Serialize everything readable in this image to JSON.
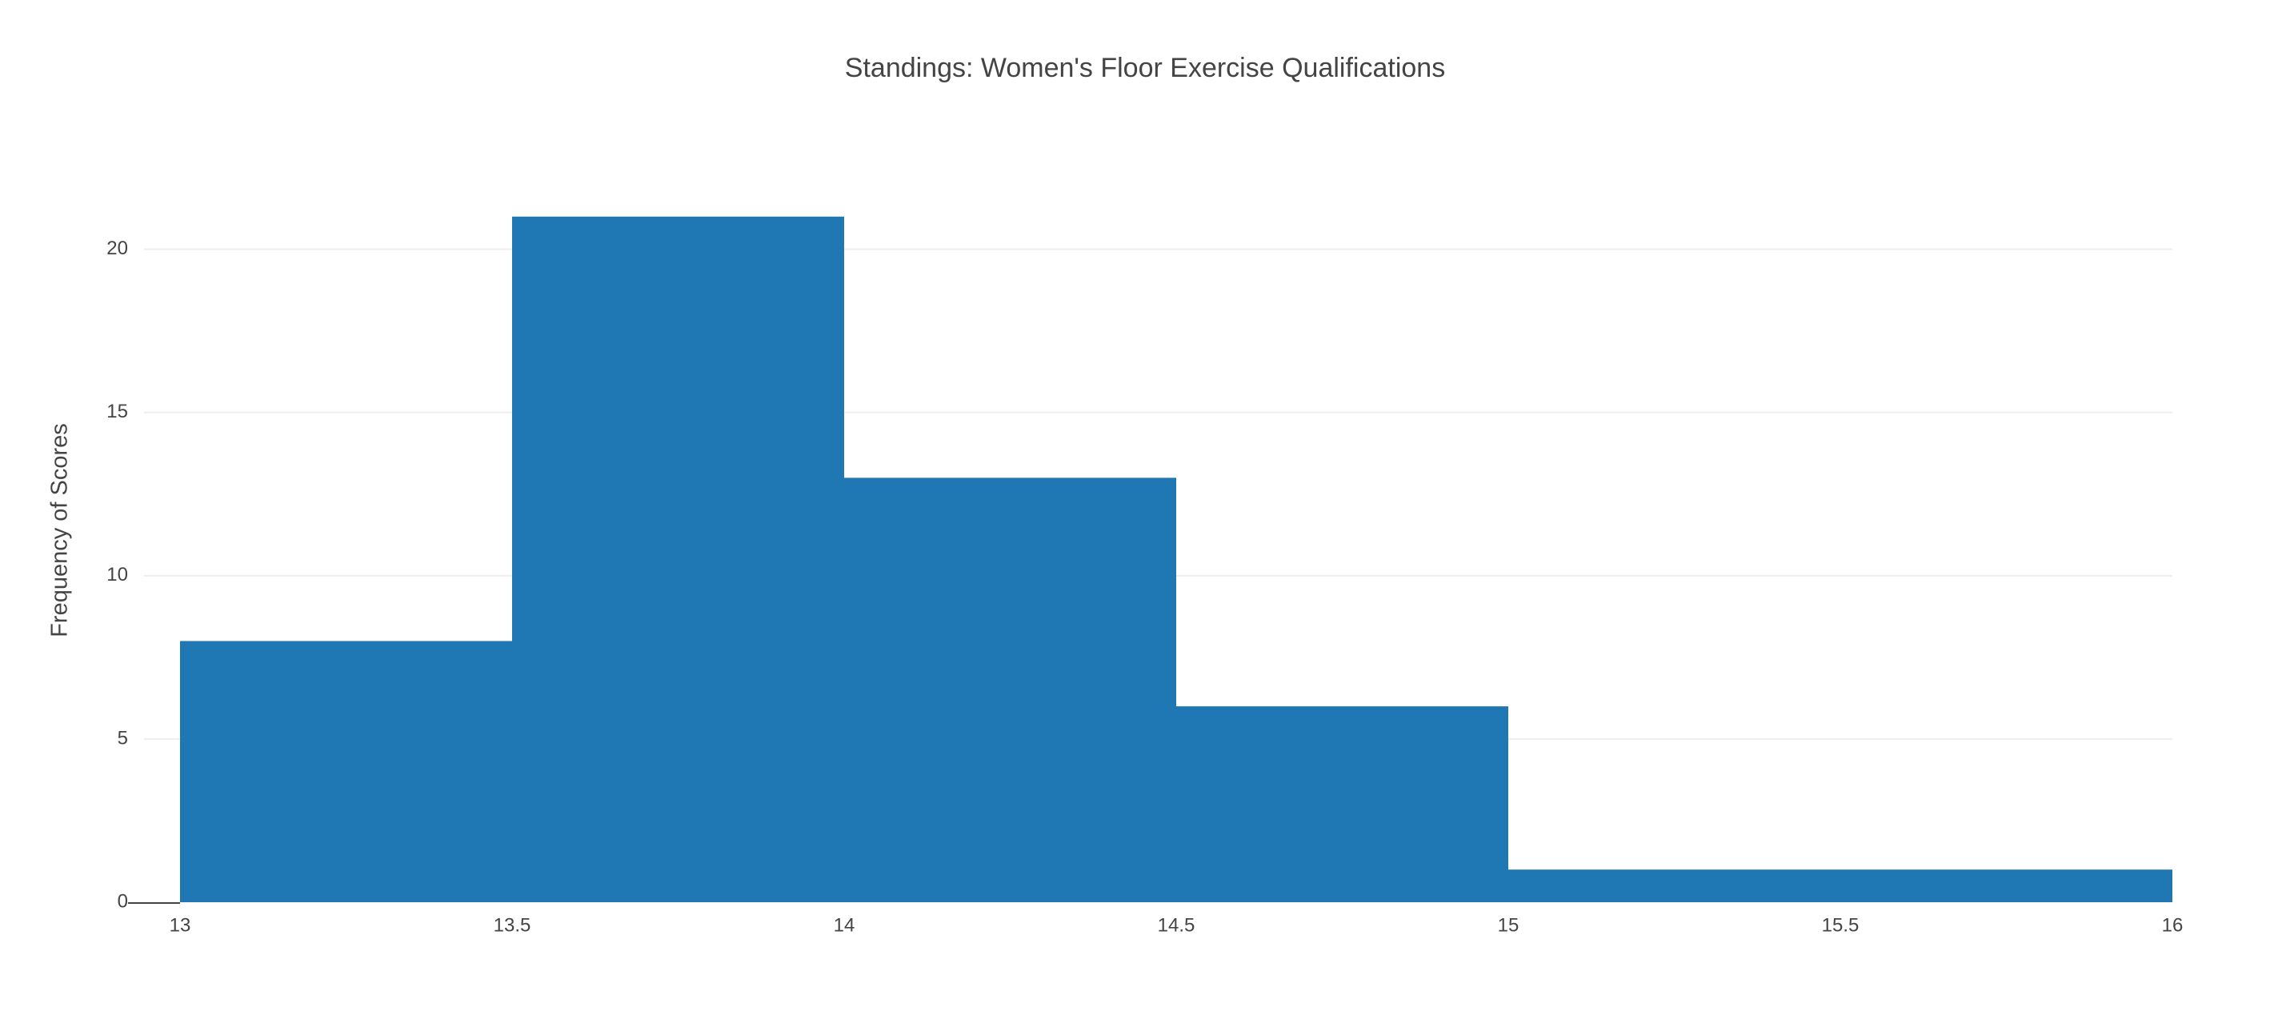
{
  "chart_data": {
    "type": "bar",
    "subtype": "histogram",
    "title": "Standings: Women's Floor Exercise Qualifications",
    "xlabel": "",
    "ylabel": "Frequency of Scores",
    "bins": [
      {
        "start": 13.0,
        "end": 13.5,
        "count": 8
      },
      {
        "start": 13.5,
        "end": 14.0,
        "count": 21
      },
      {
        "start": 14.0,
        "end": 14.5,
        "count": 13
      },
      {
        "start": 14.5,
        "end": 15.0,
        "count": 6
      },
      {
        "start": 15.0,
        "end": 16.0,
        "count": 1
      }
    ],
    "xlim": [
      13,
      16
    ],
    "ylim": [
      0,
      22
    ],
    "xticks": [
      13,
      13.5,
      14,
      14.5,
      15,
      15.5,
      16
    ],
    "xtick_labels": [
      "13",
      "13.5",
      "14",
      "14.5",
      "15",
      "15.5",
      "16"
    ],
    "yticks": [
      0,
      5,
      10,
      15,
      20
    ],
    "ytick_labels": [
      "0",
      "5",
      "10",
      "15",
      "20"
    ],
    "grid": true,
    "legend": "none",
    "colors": {
      "bar": "#1f77b4",
      "grid": "#eeeeee",
      "text": "#444444",
      "axis_line": "#444444"
    }
  }
}
